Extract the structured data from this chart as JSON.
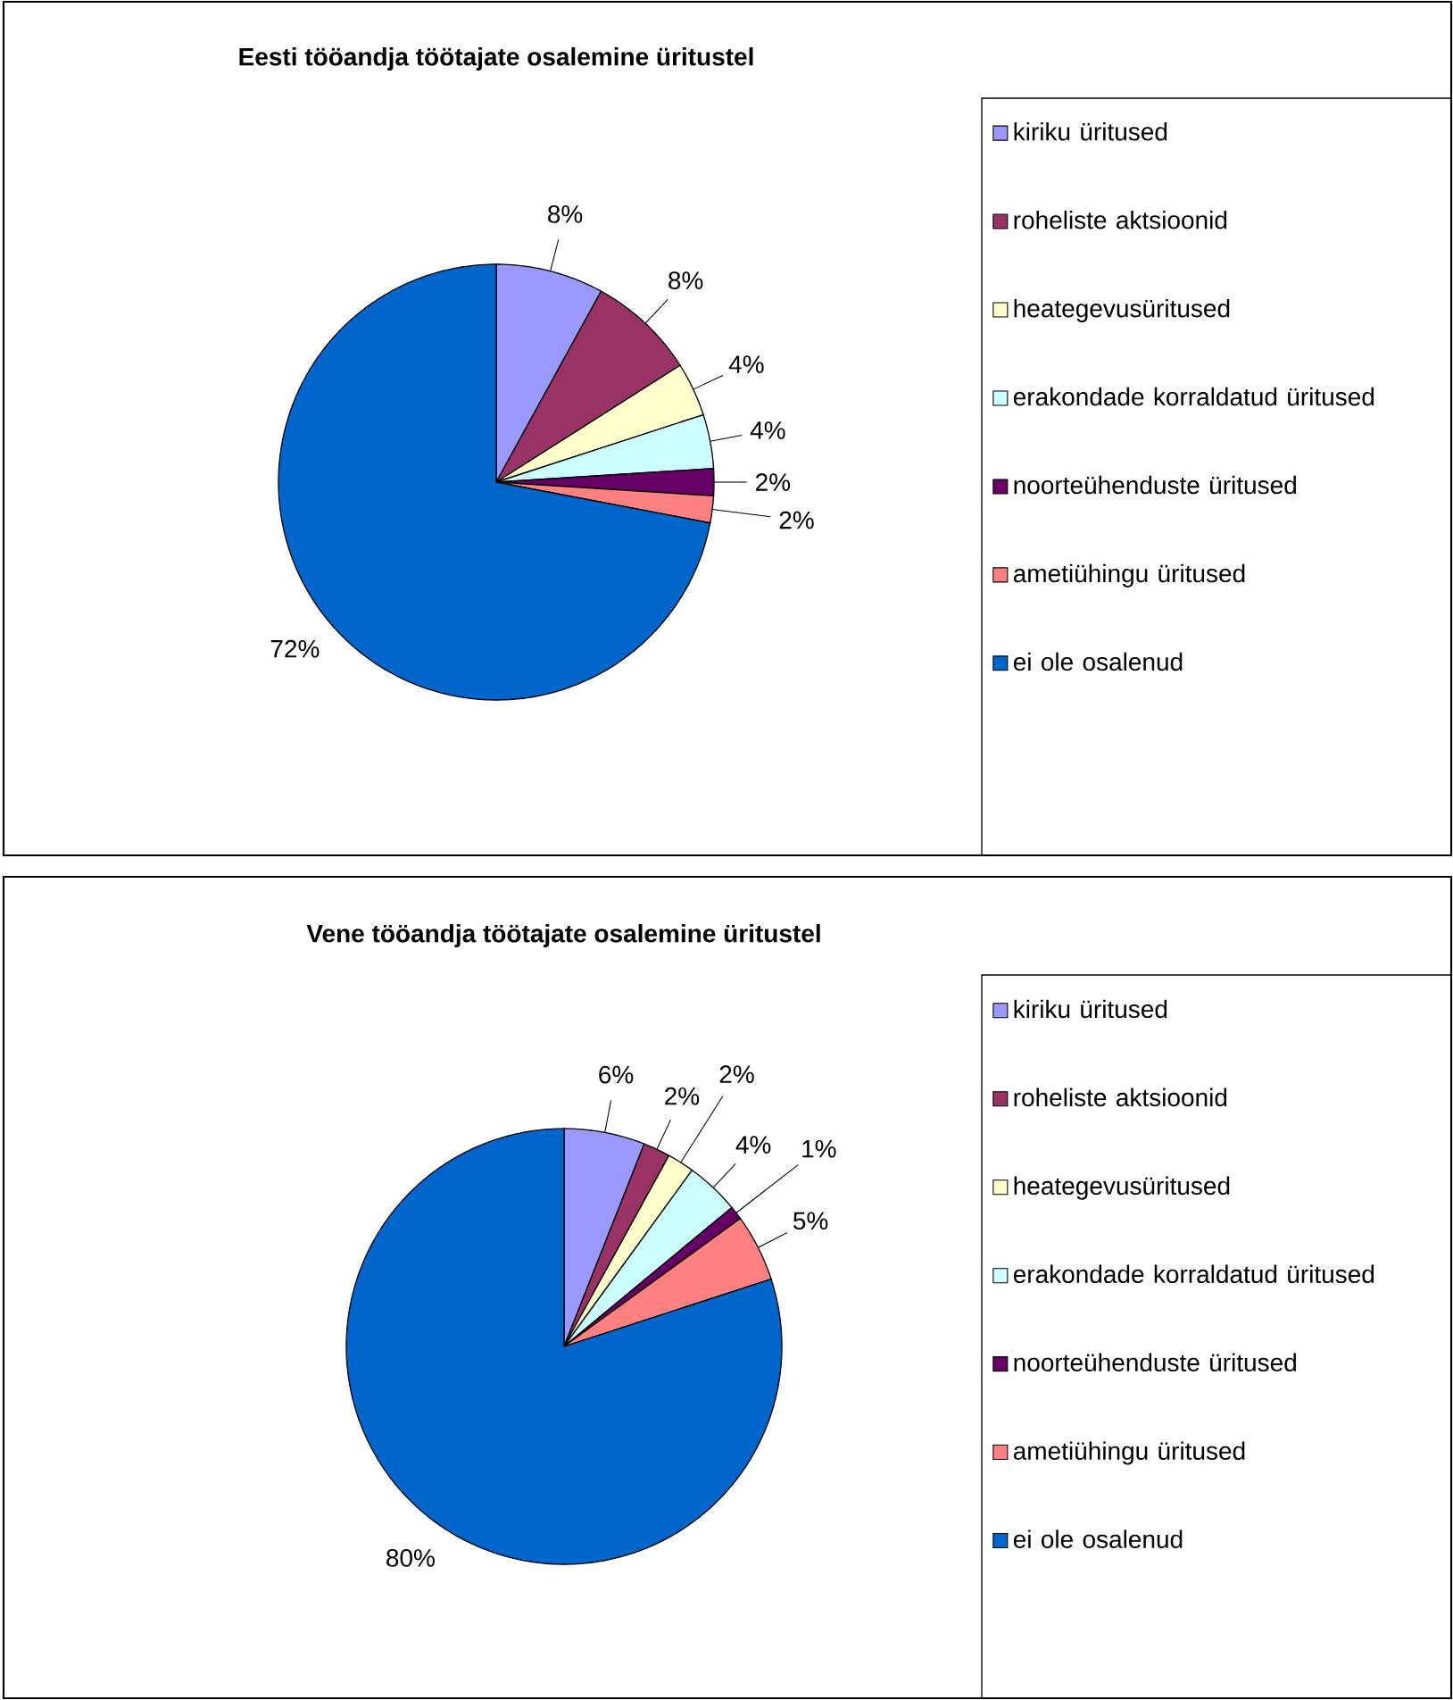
{
  "chart_data": [
    {
      "type": "pie",
      "title": "Eesti tööandja töötajate osalemine üritustel",
      "categories": [
        "kiriku üritused",
        "roheliste aktsioonid",
        "heategevusüritused",
        "erakondade korraldatud üritused",
        "noorteühenduste üritused",
        "ametiühingu üritused",
        "ei ole osalenud"
      ],
      "values": [
        8,
        8,
        4,
        4,
        2,
        2,
        72
      ],
      "value_labels": [
        "8%",
        "8%",
        "4%",
        "4%",
        "2%",
        "2%",
        "72%"
      ],
      "colors": [
        "#9999ff",
        "#993366",
        "#ffffcc",
        "#ccffff",
        "#660066",
        "#ff8080",
        "#0066cc"
      ],
      "legend": "right"
    },
    {
      "type": "pie",
      "title": "Vene tööandja töötajate osalemine üritustel",
      "categories": [
        "kiriku üritused",
        "roheliste aktsioonid",
        "heategevusüritused",
        "erakondade korraldatud üritused",
        "noorteühenduste üritused",
        "ametiühingu üritused",
        "ei ole osalenud"
      ],
      "values": [
        6,
        2,
        2,
        4,
        1,
        5,
        80
      ],
      "value_labels": [
        "6%",
        "2%",
        "2%",
        "4%",
        "1%",
        "5%",
        "80%"
      ],
      "colors": [
        "#9999ff",
        "#993366",
        "#ffffcc",
        "#ccffff",
        "#660066",
        "#ff8080",
        "#0066cc"
      ],
      "legend": "right"
    }
  ]
}
